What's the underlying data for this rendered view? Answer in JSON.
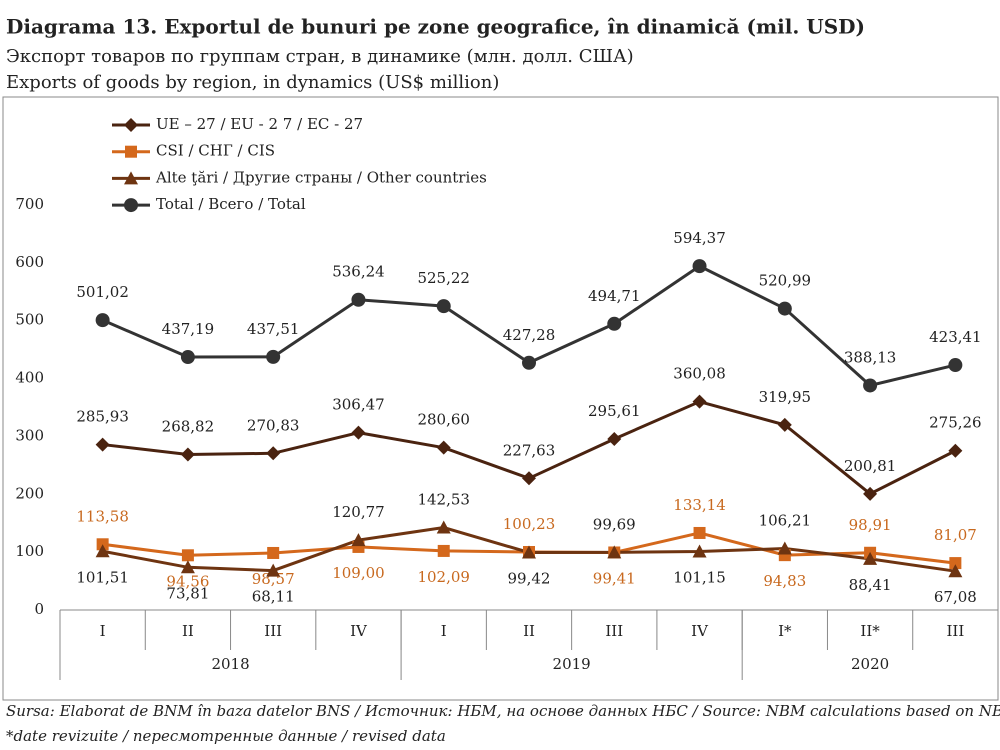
{
  "chart_data": {
    "type": "line",
    "title": "Diagrama 13. Exportul de bunuri pe zone geografice, în dinamică (mil. USD)",
    "subtitle": "Экспорт товаров по группам стран, в динамике (млн. долл. США)",
    "subtitle2": "Exports of goods by region, in dynamics (US$ million)",
    "categories": [
      "I",
      "II",
      "III",
      "IV",
      "I",
      "II",
      "III",
      "IV",
      "I*",
      "II*",
      "III"
    ],
    "groups": [
      {
        "label": "2018",
        "count": 4
      },
      {
        "label": "2019",
        "count": 4
      },
      {
        "label": "2020",
        "count": 3
      }
    ],
    "ylim": [
      0,
      700
    ],
    "yticks": [
      0,
      100,
      200,
      300,
      400,
      500,
      600,
      700
    ],
    "legend": "upper left",
    "series": [
      {
        "name": "UE – 27 / EU - 2 7 / ЕС - 27",
        "color": "#4a2310",
        "marker": "diamond",
        "values": [
          285.93,
          268.82,
          270.83,
          306.47,
          280.6,
          227.63,
          295.61,
          360.08,
          319.95,
          200.81,
          275.26
        ],
        "value_labels": [
          "285,93",
          "268,82",
          "270,83",
          "306,47",
          "280,60",
          "227,63",
          "295,61",
          "360,08",
          "319,95",
          "200,81",
          "275,26"
        ]
      },
      {
        "name": "CSI / СНГ / CIS",
        "color": "#d4681c",
        "marker": "square",
        "values": [
          113.58,
          94.56,
          98.57,
          109.0,
          102.09,
          100.23,
          99.41,
          133.14,
          94.83,
          98.91,
          81.07
        ],
        "value_labels": [
          "113,58",
          "94,56",
          "98,57",
          "109,00",
          "102,09",
          "100,23",
          "99,41",
          "133,14",
          "94,83",
          "98,91",
          "81,07"
        ]
      },
      {
        "name": "Alte ţări / Другие страны / Other countries",
        "color": "#6e3411",
        "marker": "triangle",
        "values": [
          101.51,
          73.81,
          68.11,
          120.77,
          142.53,
          99.42,
          99.69,
          101.15,
          106.21,
          88.41,
          67.08
        ],
        "value_labels": [
          "101,51",
          "73,81",
          "68,11",
          "120,77",
          "142,53",
          "99,42",
          "99,69",
          "101,15",
          "106,21",
          "88,41",
          "67,08"
        ]
      },
      {
        "name": "Total / Всего / Total",
        "color": "#333333",
        "marker": "circle",
        "values": [
          501.02,
          437.19,
          437.51,
          536.24,
          525.22,
          427.28,
          494.71,
          594.37,
          520.99,
          388.13,
          423.41
        ],
        "value_labels": [
          "501,02",
          "437,19",
          "437,51",
          "536,24",
          "525,22",
          "427,28",
          "494,71",
          "594,37",
          "520,99",
          "388,13",
          "423,41"
        ]
      }
    ],
    "source": "Sursa: Elaborat de BNM în baza datelor BNS / Источник: НБМ, на основе данных НБС / Source: NBM calculations based on NBS data",
    "note": "*date revizuite / пересмотренные данные / revised data"
  }
}
